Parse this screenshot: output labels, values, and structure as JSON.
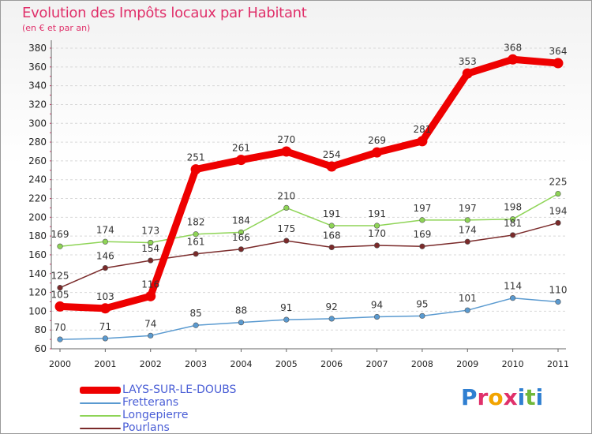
{
  "title": "Evolution des Impôts locaux par Habitant",
  "subtitle": "(en € et par an)",
  "brand": {
    "letters": [
      "P",
      "r",
      "o",
      "x",
      "i",
      "t",
      "i"
    ],
    "colors": [
      "#2f7fd1",
      "#e0306a",
      "#f2a400",
      "#e0306a",
      "#2f7fd1",
      "#6fb83a",
      "#2f7fd1"
    ]
  },
  "chart_data": {
    "type": "line",
    "title": "Evolution des Impôts locaux par Habitant",
    "subtitle": "(en € et par an)",
    "xlabel": "",
    "ylabel": "",
    "x": [
      "2000",
      "2001",
      "2002",
      "2003",
      "2004",
      "2005",
      "2006",
      "2007",
      "2008",
      "2009",
      "2010",
      "2011"
    ],
    "ylim": [
      60,
      380
    ],
    "yticks": [
      60,
      80,
      100,
      120,
      140,
      160,
      180,
      200,
      220,
      240,
      260,
      280,
      300,
      320,
      340,
      360,
      380
    ],
    "series": [
      {
        "name": "LAYS-SUR-LE-DOUBS",
        "color": "#ee0000",
        "values": [
          105,
          103,
          116,
          251,
          261,
          270,
          254,
          269,
          281,
          353,
          368,
          364
        ],
        "labels": [
          "105",
          "103",
          "116",
          "251",
          "261",
          "270",
          "254",
          "269",
          "281",
          "353",
          "368",
          "364"
        ]
      },
      {
        "name": "Fretterans",
        "color": "#5a9ad0",
        "values": [
          70,
          71,
          74,
          85,
          88,
          91,
          92,
          94,
          95,
          101,
          114,
          110
        ],
        "labels": [
          "70",
          "71",
          "74",
          "85",
          "88",
          "91",
          "92",
          "94",
          "95",
          "101",
          "114",
          "110"
        ]
      },
      {
        "name": "Longepierre",
        "color": "#8ed456",
        "values": [
          169,
          174,
          173,
          182,
          184,
          210,
          191,
          191,
          197,
          197,
          198,
          225
        ],
        "labels": [
          "169",
          "174",
          "173",
          "182",
          "184",
          "210",
          "191",
          "191",
          "197",
          "197",
          "198",
          "225"
        ]
      },
      {
        "name": "Pourlans",
        "color": "#7a2a2a",
        "values": [
          125,
          146,
          154,
          161,
          166,
          175,
          168,
          170,
          169,
          174,
          181,
          194
        ],
        "labels": [
          "125",
          "146",
          "154",
          "161",
          "166",
          "175",
          "168",
          "170",
          "169",
          "174",
          "181",
          "194"
        ]
      }
    ],
    "legend": "bottom-left"
  }
}
